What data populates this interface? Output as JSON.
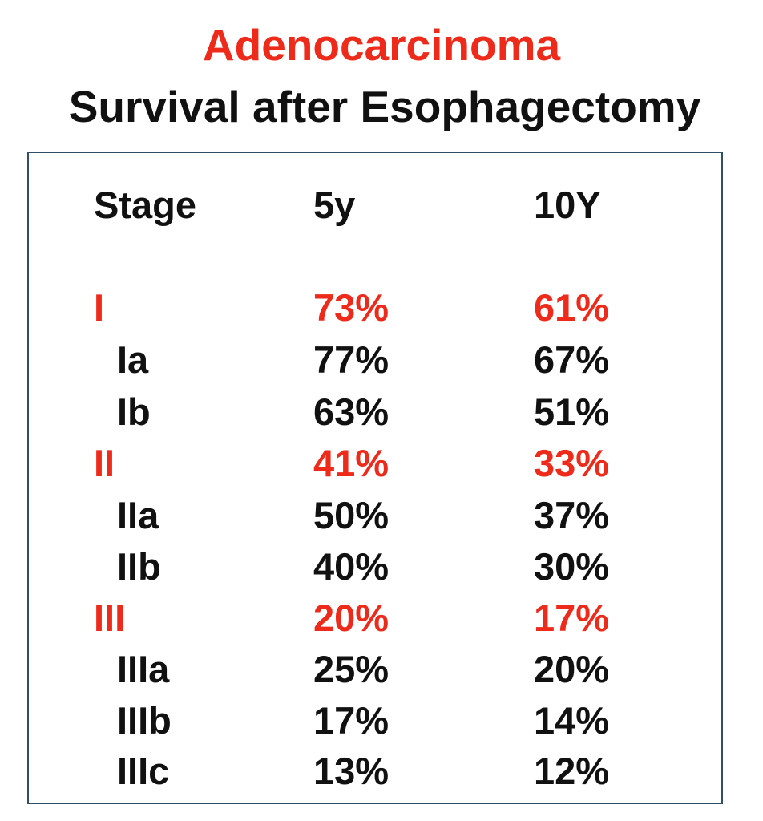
{
  "title": "Adenocarcinoma",
  "subtitle": "Survival after Esophagectomy",
  "columns": [
    "Stage",
    "5y",
    "10Y"
  ],
  "rows": [
    {
      "stage": "I",
      "y5": "73%",
      "y10": "61%",
      "kind": "major"
    },
    {
      "stage": "Ia",
      "y5": "77%",
      "y10": "67%",
      "kind": "sub"
    },
    {
      "stage": "Ib",
      "y5": "63%",
      "y10": "51%",
      "kind": "sub"
    },
    {
      "stage": "II",
      "y5": "41%",
      "y10": "33%",
      "kind": "major"
    },
    {
      "stage": "IIa",
      "y5": "50%",
      "y10": "37%",
      "kind": "sub"
    },
    {
      "stage": "IIb",
      "y5": "40%",
      "y10": "30%",
      "kind": "sub"
    },
    {
      "stage": "III",
      "y5": "20%",
      "y10": "17%",
      "kind": "major"
    },
    {
      "stage": "IIIa",
      "y5": "25%",
      "y10": "20%",
      "kind": "sub"
    },
    {
      "stage": "IIIb",
      "y5": "17%",
      "y10": "14%",
      "kind": "sub"
    },
    {
      "stage": "IIIc",
      "y5": "13%",
      "y10": "12%",
      "kind": "sub"
    }
  ],
  "colors": {
    "highlight": "#ee2a1b",
    "text": "#111111",
    "border": "#2f4f66"
  }
}
